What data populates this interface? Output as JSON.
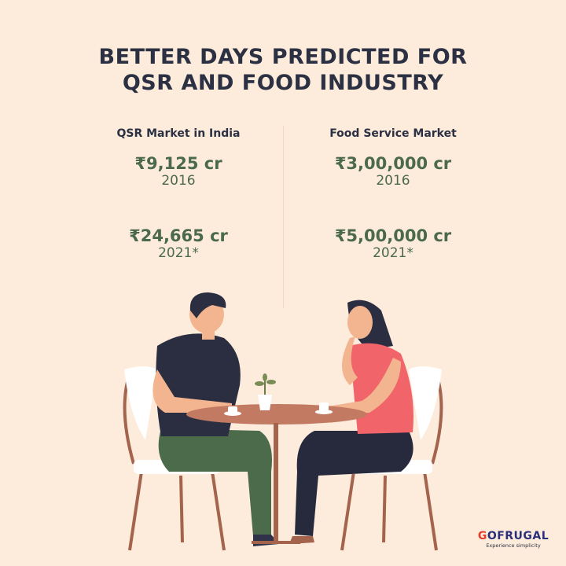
{
  "title": {
    "line1": "BETTER DAYS PREDICTED FOR",
    "line2": "QSR AND FOOD INDUSTRY"
  },
  "columns": [
    {
      "label": "QSR Market in India",
      "stats": [
        {
          "value": "₹9,125 cr",
          "year": "2016"
        },
        {
          "value": "₹24,665 cr",
          "year": "2021*"
        }
      ]
    },
    {
      "label": "Food Service Market",
      "stats": [
        {
          "value": "₹3,00,000 cr",
          "year": "2016"
        },
        {
          "value": "₹5,00,000 cr",
          "year": "2021*"
        }
      ]
    }
  ],
  "logo": {
    "brand_first": "G",
    "brand_rest": "OFRUGAL",
    "tagline": "Experience simplicity"
  },
  "colors": {
    "background": "#fdebdc",
    "title": "#2b3142",
    "values": "#4b6a4d",
    "brand": "#2a2f7a",
    "brand_accent": "#e0402c"
  }
}
